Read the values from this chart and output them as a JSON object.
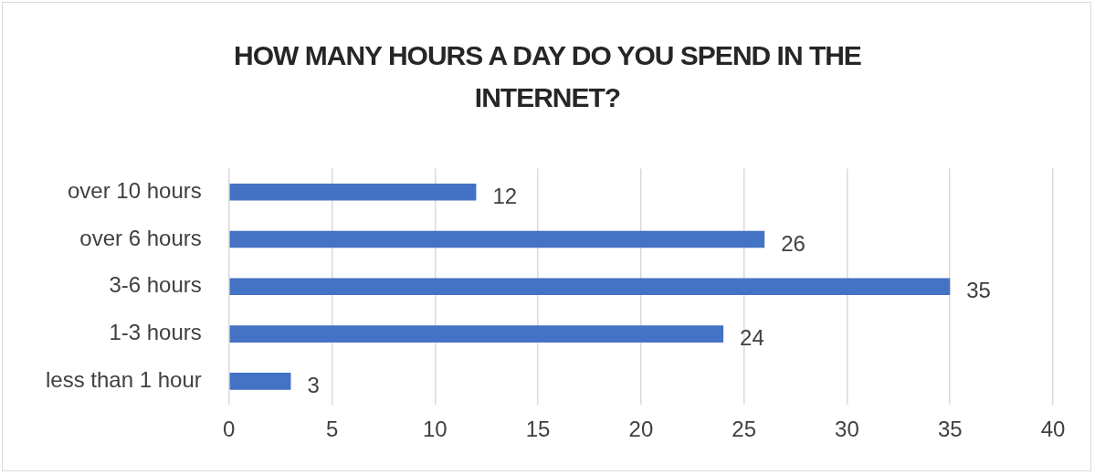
{
  "chart_data": {
    "type": "bar",
    "orientation": "horizontal",
    "title": "HOW MANY HOURS A DAY DO YOU SPEND IN THE INTERNET?",
    "categories": [
      "over 10 hours",
      "over 6 hours",
      "3-6 hours",
      "1-3 hours",
      "less than 1 hour"
    ],
    "values": [
      12,
      26,
      35,
      24,
      3
    ],
    "color": "#4472c4",
    "xlim": [
      0,
      40
    ],
    "xticks": [
      0,
      5,
      10,
      15,
      20,
      25,
      30,
      35,
      40
    ],
    "grid": "x",
    "data_labels": true
  }
}
